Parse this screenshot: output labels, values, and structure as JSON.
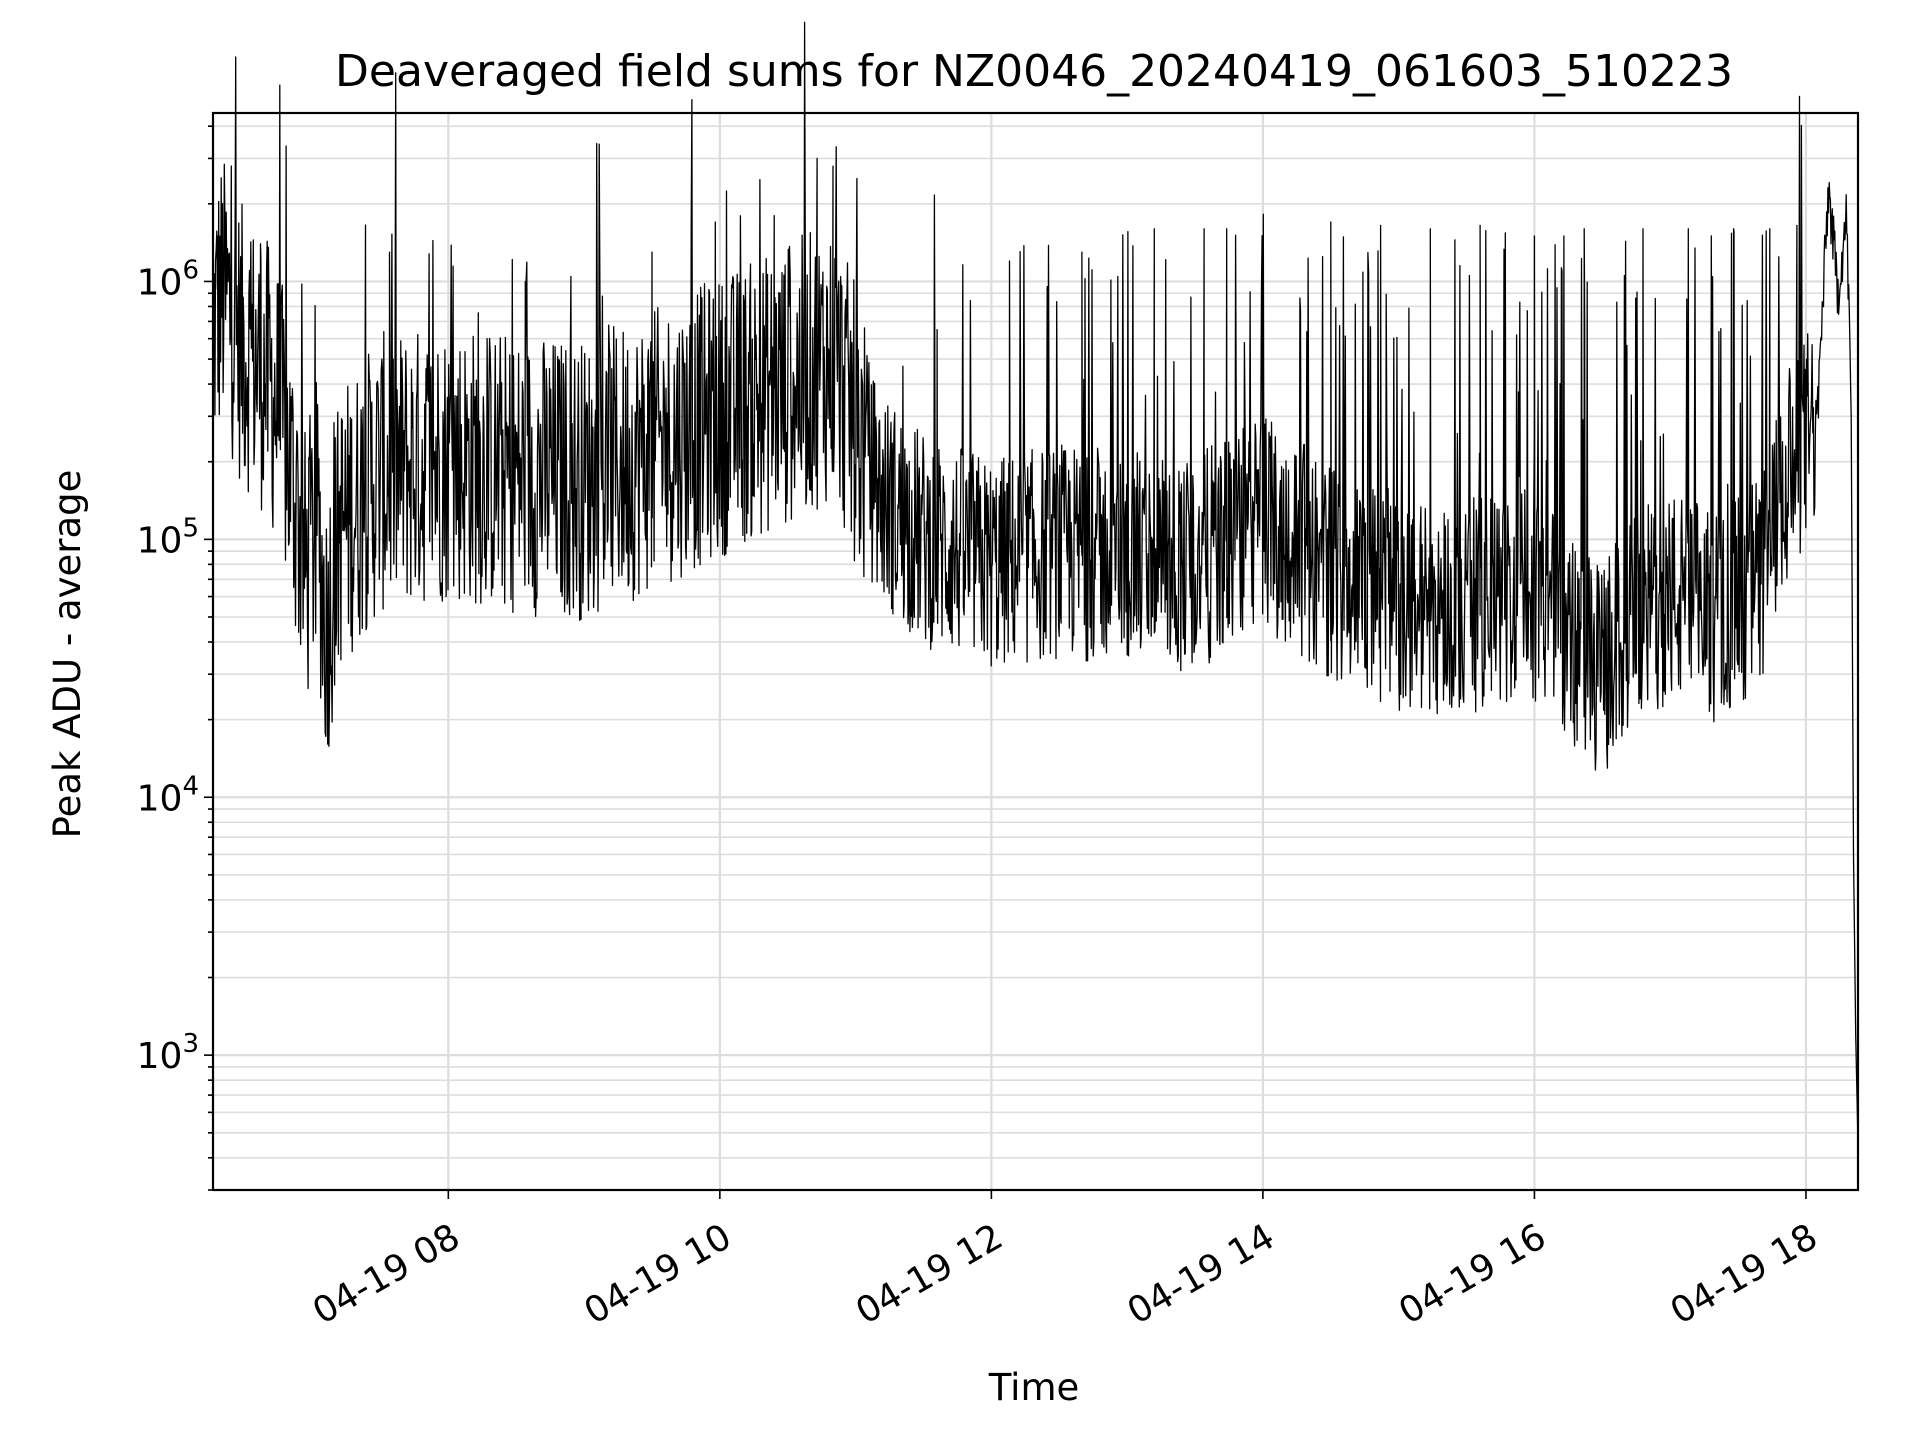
{
  "chart_data": {
    "type": "line",
    "title": "Deaveraged field sums for NZ0046_20240419_061603_510223",
    "xlabel": "Time",
    "ylabel": "Peak ADU - average",
    "yscale": "log",
    "xlim": [
      "2024-04-19 06:16",
      "2024-04-19 18:23"
    ],
    "ylim": [
      300,
      4500000
    ],
    "grid": true,
    "x_ticks": [
      {
        "value": "2024-04-19 08:00",
        "label": "04-19 08"
      },
      {
        "value": "2024-04-19 10:00",
        "label": "04-19 10"
      },
      {
        "value": "2024-04-19 12:00",
        "label": "04-19 12"
      },
      {
        "value": "2024-04-19 14:00",
        "label": "04-19 14"
      },
      {
        "value": "2024-04-19 16:00",
        "label": "04-19 16"
      },
      {
        "value": "2024-04-19 18:00",
        "label": "04-19 18"
      }
    ],
    "y_ticks": [
      {
        "value": 1000,
        "base": "10",
        "exp": "3"
      },
      {
        "value": 10000,
        "base": "10",
        "exp": "4"
      },
      {
        "value": 100000,
        "base": "10",
        "exp": "5"
      },
      {
        "value": 1000000,
        "base": "10",
        "exp": "6"
      }
    ],
    "series": [
      {
        "color": "#000000",
        "points": [
          [
            "2024-04-19 06:16",
            650000
          ],
          [
            "2024-04-19 06:20",
            900000
          ],
          [
            "2024-04-19 06:24",
            750000
          ],
          [
            "2024-04-19 06:28",
            580000
          ],
          [
            "2024-04-19 06:34",
            500000
          ],
          [
            "2024-04-19 06:40",
            420000
          ],
          [
            "2024-04-19 06:46",
            300000
          ],
          [
            "2024-04-19 06:52",
            150000
          ],
          [
            "2024-04-19 06:57",
            75000
          ],
          [
            "2024-04-19 07:02",
            120000
          ],
          [
            "2024-04-19 07:06",
            45000
          ],
          [
            "2024-04-19 07:12",
            110000
          ],
          [
            "2024-04-19 07:30",
            180000
          ],
          [
            "2024-04-19 08:00",
            200000
          ],
          [
            "2024-04-19 08:30",
            180000
          ],
          [
            "2024-04-19 09:00",
            170000
          ],
          [
            "2024-04-19 09:30",
            220000
          ],
          [
            "2024-04-19 10:00",
            300000
          ],
          [
            "2024-04-19 10:30",
            400000
          ],
          [
            "2024-04-19 10:50",
            500000
          ],
          [
            "2024-04-19 11:10",
            150000
          ],
          [
            "2024-04-19 11:30",
            100000
          ],
          [
            "2024-04-19 12:00",
            80000
          ],
          [
            "2024-04-19 12:30",
            90000
          ],
          [
            "2024-04-19 13:00",
            85000
          ],
          [
            "2024-04-19 13:30",
            80000
          ],
          [
            "2024-04-19 14:00",
            120000
          ],
          [
            "2024-04-19 14:30",
            75000
          ],
          [
            "2024-04-19 15:00",
            55000
          ],
          [
            "2024-04-19 15:30",
            55000
          ],
          [
            "2024-04-19 16:00",
            60000
          ],
          [
            "2024-04-19 16:28",
            30000
          ],
          [
            "2024-04-19 16:45",
            50000
          ],
          [
            "2024-04-19 17:00",
            60000
          ],
          [
            "2024-04-19 17:20",
            50000
          ],
          [
            "2024-04-19 17:40",
            70000
          ],
          [
            "2024-04-19 17:55",
            200000
          ],
          [
            "2024-04-19 18:05",
            300000
          ],
          [
            "2024-04-19 18:10",
            2300000
          ],
          [
            "2024-04-19 18:14",
            900000
          ],
          [
            "2024-04-19 18:18",
            1800000
          ],
          [
            "2024-04-19 18:20",
            300000
          ],
          [
            "2024-04-19 18:21",
            6000
          ],
          [
            "2024-04-19 18:22",
            1200
          ],
          [
            "2024-04-19 18:23",
            450
          ]
        ],
        "spikes": [
          [
            "2024-04-19 06:18",
            1500000
          ],
          [
            "2024-04-19 06:29",
            1000000
          ],
          [
            "2024-04-19 06:37",
            1400000
          ],
          [
            "2024-04-19 07:34",
            1300000
          ],
          [
            "2024-04-19 08:34",
            1000000
          ],
          [
            "2024-04-19 09:30",
            1300000
          ],
          [
            "2024-04-19 09:58",
            1700000
          ],
          [
            "2024-04-19 10:24",
            1800000
          ],
          [
            "2024-04-19 10:43",
            3000000
          ],
          [
            "2024-04-19 10:50",
            2800000
          ],
          [
            "2024-04-19 11:36",
            650000
          ],
          [
            "2024-04-19 12:08",
            1200000
          ],
          [
            "2024-04-19 12:40",
            1300000
          ],
          [
            "2024-04-19 13:12",
            1600000
          ],
          [
            "2024-04-19 13:34",
            1600000
          ],
          [
            "2024-04-19 13:44",
            1600000
          ],
          [
            "2024-04-19 14:30",
            1700000
          ],
          [
            "2024-04-19 14:52",
            1650000
          ],
          [
            "2024-04-19 15:14",
            1600000
          ],
          [
            "2024-04-19 15:36",
            1650000
          ],
          [
            "2024-04-19 16:00",
            1500000
          ],
          [
            "2024-04-19 16:22",
            1600000
          ],
          [
            "2024-04-19 16:48",
            1600000
          ],
          [
            "2024-04-19 17:08",
            1600000
          ],
          [
            "2024-04-19 17:28",
            1600000
          ],
          [
            "2024-04-19 17:44",
            1600000
          ],
          [
            "2024-04-19 17:56",
            1650000
          ]
        ]
      }
    ]
  }
}
